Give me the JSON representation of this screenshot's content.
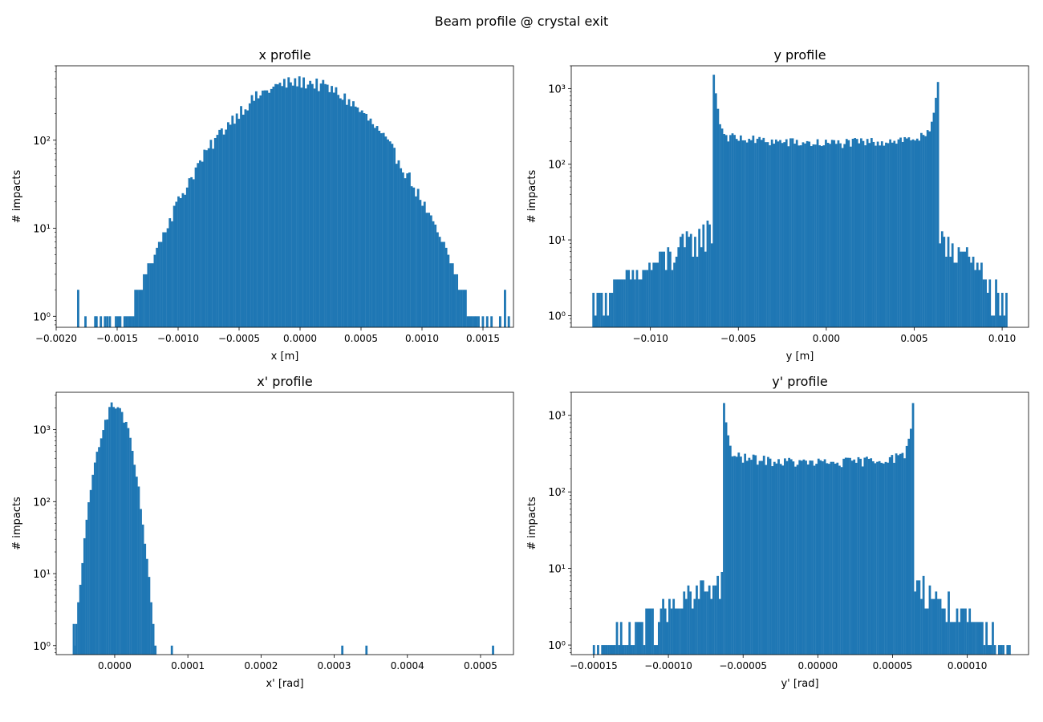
{
  "figure": {
    "suptitle": "Beam profile @ crystal exit",
    "bar_color": "#1f77b4"
  },
  "chart_data": [
    {
      "type": "bar",
      "subtype": "histogram",
      "title": "x profile",
      "xlabel": "x [m]",
      "ylabel": "# impacts",
      "y_scale": "log",
      "xlim": [
        -0.002,
        0.00175
      ],
      "ylim": [
        0.75,
        700
      ],
      "xticks": [
        -0.002,
        -0.0015,
        -0.001,
        -0.0005,
        0.0,
        0.0005,
        0.001,
        0.0015
      ],
      "xtick_labels": [
        "−0.0020",
        "−0.0015",
        "−0.0010",
        "−0.0005",
        "0.0000",
        "0.0005",
        "0.0010",
        "0.0015"
      ],
      "yticks": [
        1,
        10,
        100
      ],
      "ytick_labels": [
        "10⁰",
        "10¹",
        "10²"
      ],
      "shape": "gaussian",
      "bin_range": [
        -0.00182,
        0.00172
      ],
      "n_bins": 200,
      "peak_value": 460,
      "peak_center": 0.0,
      "sigma": 0.0004,
      "sparse_outliers": [
        {
          "x": -0.00182,
          "value": 2
        },
        {
          "x": -0.00176,
          "value": 1
        },
        {
          "x": -0.00168,
          "value": 1
        },
        {
          "x": -0.0016,
          "value": 1
        },
        {
          "x": -0.00156,
          "value": 1
        },
        {
          "x": 0.00168,
          "value": 2
        }
      ]
    },
    {
      "type": "bar",
      "subtype": "histogram",
      "title": "y profile",
      "xlabel": "y [m]",
      "ylabel": "# impacts",
      "y_scale": "log",
      "xlim": [
        -0.0145,
        0.0115
      ],
      "ylim": [
        0.7,
        2000
      ],
      "xticks": [
        -0.01,
        -0.005,
        0.0,
        0.005,
        0.01
      ],
      "xtick_labels": [
        "−0.010",
        "−0.005",
        "0.000",
        "0.005",
        "0.010"
      ],
      "yticks": [
        1,
        10,
        100,
        1000
      ],
      "ytick_labels": [
        "10⁰",
        "10¹",
        "10²",
        "10³"
      ],
      "shape": "channeling-plateau",
      "bin_range": [
        -0.0133,
        0.0103
      ],
      "n_bins": 200,
      "plateau_edges": [
        -0.0064,
        0.0064
      ],
      "edge_peaks": [
        1400,
        1300
      ],
      "center_level": 190,
      "tail_level": 8
    },
    {
      "type": "bar",
      "subtype": "histogram",
      "title": "x' profile",
      "xlabel": "x' [rad]",
      "ylabel": "# impacts",
      "y_scale": "log",
      "xlim": [
        -8e-05,
        0.000545
      ],
      "ylim": [
        0.75,
        3300
      ],
      "xticks": [
        0.0,
        0.0001,
        0.0002,
        0.0003,
        0.0004,
        0.0005
      ],
      "xtick_labels": [
        "0.0000",
        "0.0001",
        "0.0002",
        "0.0003",
        "0.0004",
        "0.0005"
      ],
      "yticks": [
        1,
        10,
        100,
        1000
      ],
      "ytick_labels": [
        "10⁰",
        "10¹",
        "10²",
        "10³"
      ],
      "shape": "gaussian",
      "bin_range": [
        -5.7e-05,
        5.7e-05
      ],
      "n_bins": 40,
      "peak_value": 2150,
      "peak_center": 0.0,
      "sigma": 1.4e-05,
      "sparse_outliers": [
        {
          "x": -5.6e-05,
          "value": 2
        },
        {
          "x": 7.8e-05,
          "value": 1
        },
        {
          "x": 0.000311,
          "value": 1
        },
        {
          "x": 0.000344,
          "value": 1
        },
        {
          "x": 0.000517,
          "value": 1
        }
      ]
    },
    {
      "type": "bar",
      "subtype": "histogram",
      "title": "y' profile",
      "xlabel": "y' [rad]",
      "ylabel": "# impacts",
      "y_scale": "log",
      "xlim": [
        -0.000165,
        0.000141
      ],
      "ylim": [
        0.75,
        2000
      ],
      "xticks": [
        -0.00015,
        -0.0001,
        -5e-05,
        0.0,
        5e-05,
        0.0001
      ],
      "xtick_labels": [
        "−0.00015",
        "−0.00010",
        "−0.00005",
        "0.00000",
        "0.00005",
        "0.00010"
      ],
      "yticks": [
        1,
        10,
        100,
        1000
      ],
      "ytick_labels": [
        "10⁰",
        "10¹",
        "10²",
        "10³"
      ],
      "shape": "channeling-plateau",
      "bin_range": [
        -0.000152,
        0.000129
      ],
      "n_bins": 200,
      "plateau_edges": [
        -6.3e-05,
        6.4e-05
      ],
      "edge_peaks": [
        1400,
        1400
      ],
      "center_level": 240,
      "tail_level": 4
    }
  ]
}
